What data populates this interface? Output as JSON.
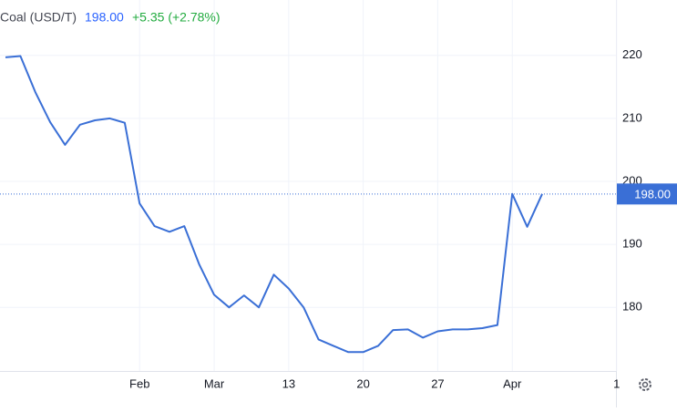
{
  "chart_data": {
    "type": "line",
    "title": "Coal (USD/T)",
    "price_label": "198.00",
    "change_label": "+5.35 (+2.78%)",
    "categories": [
      null,
      null,
      null,
      null,
      null,
      null,
      null,
      null,
      null,
      "Feb",
      null,
      null,
      null,
      null,
      "Mar",
      null,
      null,
      null,
      null,
      "13",
      null,
      null,
      null,
      null,
      "20",
      null,
      null,
      null,
      null,
      "27",
      null,
      null,
      null,
      null,
      "Apr",
      null,
      null,
      null,
      null,
      null,
      null,
      "1"
    ],
    "values": [
      219.7,
      219.9,
      214.2,
      209.4,
      205.8,
      209.0,
      209.7,
      210.0,
      209.3,
      196.5,
      192.9,
      192.0,
      192.9,
      186.8,
      182.0,
      180.0,
      181.9,
      180.0,
      185.2,
      183.0,
      180.0,
      174.9,
      173.9,
      172.9,
      172.9,
      173.9,
      176.4,
      176.5,
      175.2,
      176.2,
      176.5,
      176.5,
      176.7,
      177.2,
      198.0,
      192.8,
      198.0,
      null,
      null,
      null,
      null,
      null
    ],
    "color": "#3a6fd6",
    "ylim": [
      169.9,
      228.8
    ],
    "yticks": [
      180,
      190,
      200,
      210,
      220
    ],
    "grid": true
  }
}
